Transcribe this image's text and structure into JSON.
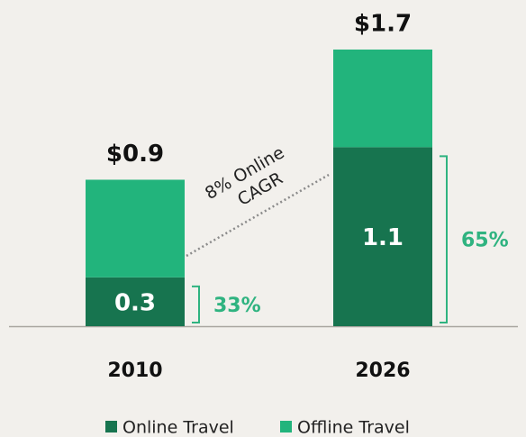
{
  "chart_data": {
    "type": "stacked-bar",
    "categories": [
      "2010",
      "2026"
    ],
    "series": [
      {
        "name": "Online Travel",
        "color": "#17744f",
        "values": [
          0.3,
          1.1
        ]
      },
      {
        "name": "Offline Travel",
        "color": "#22b47c",
        "values": [
          0.6,
          0.6
        ]
      }
    ],
    "total_labels": [
      "$0.9",
      "$1.7"
    ],
    "shares": [
      33,
      65
    ],
    "share_labels": [
      "33%",
      "65%"
    ],
    "share_color": "#2fb380",
    "annotation": [
      "8% Online",
      "CAGR"
    ],
    "ylim": [
      0,
      1.7
    ]
  }
}
